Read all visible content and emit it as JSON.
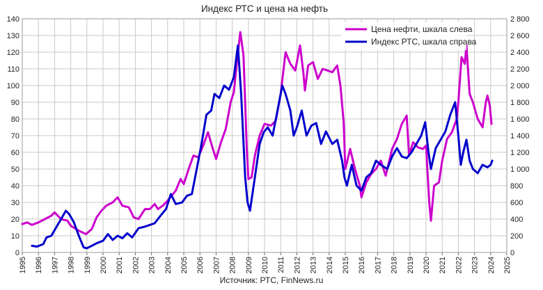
{
  "chart_data": {
    "type": "line",
    "title": "Индекс РТС и цена на нефть",
    "source": "Источник: РТС, FinNews.ru",
    "xlim": [
      1995,
      2025
    ],
    "x_ticks": [
      "1995",
      "1996",
      "1997",
      "1998",
      "1999",
      "2000",
      "2001",
      "2002",
      "2003",
      "2004",
      "2005",
      "2006",
      "2007",
      "2008",
      "2009",
      "2010",
      "2011",
      "2012",
      "2013",
      "2014",
      "2015",
      "2016",
      "2017",
      "2018",
      "2019",
      "2020",
      "2021",
      "2022",
      "2023",
      "2024",
      "2025"
    ],
    "y_left": {
      "lim": [
        0,
        140
      ],
      "ticks": [
        "0",
        "10",
        "20",
        "30",
        "40",
        "50",
        "60",
        "70",
        "80",
        "90",
        "100",
        "110",
        "120",
        "130",
        "140"
      ]
    },
    "y_right": {
      "lim": [
        0,
        2800
      ],
      "ticks": [
        "0",
        "200",
        "400",
        "600",
        "800",
        "1 000",
        "1 200",
        "1 400",
        "1 600",
        "1 800",
        "2 000",
        "2 200",
        "2 400",
        "2 600",
        "2 800"
      ]
    },
    "grid": true,
    "legend_position": "top-right",
    "series": [
      {
        "name": "Цена нефти, шкала слева",
        "axis": "left",
        "color": "#cc00cc",
        "points": [
          [
            1995.0,
            17
          ],
          [
            1995.3,
            18
          ],
          [
            1995.6,
            16.5
          ],
          [
            1996.0,
            18
          ],
          [
            1996.4,
            20
          ],
          [
            1996.8,
            22
          ],
          [
            1997.0,
            24
          ],
          [
            1997.4,
            20
          ],
          [
            1997.8,
            19
          ],
          [
            1998.0,
            16
          ],
          [
            1998.5,
            13
          ],
          [
            1998.95,
            11
          ],
          [
            1999.3,
            14
          ],
          [
            1999.6,
            21
          ],
          [
            1999.9,
            25
          ],
          [
            2000.2,
            28
          ],
          [
            2000.6,
            30
          ],
          [
            2000.9,
            33
          ],
          [
            2001.2,
            28
          ],
          [
            2001.6,
            27
          ],
          [
            2001.9,
            21
          ],
          [
            2002.2,
            20
          ],
          [
            2002.6,
            26
          ],
          [
            2002.9,
            26
          ],
          [
            2003.2,
            29
          ],
          [
            2003.4,
            26
          ],
          [
            2003.7,
            28
          ],
          [
            2004.0,
            31
          ],
          [
            2004.5,
            37
          ],
          [
            2004.8,
            44
          ],
          [
            2005.0,
            41
          ],
          [
            2005.3,
            50
          ],
          [
            2005.6,
            58
          ],
          [
            2005.9,
            57
          ],
          [
            2006.2,
            64
          ],
          [
            2006.5,
            72
          ],
          [
            2006.8,
            62
          ],
          [
            2007.0,
            56
          ],
          [
            2007.3,
            66
          ],
          [
            2007.6,
            74
          ],
          [
            2007.9,
            90
          ],
          [
            2008.1,
            96
          ],
          [
            2008.3,
            115
          ],
          [
            2008.5,
            132
          ],
          [
            2008.7,
            118
          ],
          [
            2008.9,
            62
          ],
          [
            2009.0,
            44
          ],
          [
            2009.2,
            45
          ],
          [
            2009.4,
            58
          ],
          [
            2009.7,
            70
          ],
          [
            2010.0,
            77
          ],
          [
            2010.4,
            76
          ],
          [
            2010.7,
            79
          ],
          [
            2011.0,
            95
          ],
          [
            2011.3,
            120
          ],
          [
            2011.6,
            113
          ],
          [
            2011.9,
            109
          ],
          [
            2012.2,
            124
          ],
          [
            2012.4,
            108
          ],
          [
            2012.5,
            97
          ],
          [
            2012.7,
            112
          ],
          [
            2013.0,
            114
          ],
          [
            2013.3,
            104
          ],
          [
            2013.6,
            110
          ],
          [
            2013.9,
            109
          ],
          [
            2014.2,
            108
          ],
          [
            2014.5,
            112
          ],
          [
            2014.7,
            100
          ],
          [
            2014.9,
            78
          ],
          [
            2015.0,
            50
          ],
          [
            2015.3,
            62
          ],
          [
            2015.6,
            50
          ],
          [
            2015.9,
            40
          ],
          [
            2016.0,
            33
          ],
          [
            2016.3,
            42
          ],
          [
            2016.6,
            47
          ],
          [
            2016.9,
            50
          ],
          [
            2017.2,
            55
          ],
          [
            2017.5,
            46
          ],
          [
            2017.9,
            62
          ],
          [
            2018.2,
            68
          ],
          [
            2018.5,
            77
          ],
          [
            2018.8,
            82
          ],
          [
            2018.95,
            58
          ],
          [
            2019.2,
            66
          ],
          [
            2019.5,
            63
          ],
          [
            2019.8,
            62
          ],
          [
            2020.0,
            64
          ],
          [
            2020.2,
            30
          ],
          [
            2020.3,
            19
          ],
          [
            2020.5,
            40
          ],
          [
            2020.8,
            42
          ],
          [
            2021.0,
            55
          ],
          [
            2021.3,
            68
          ],
          [
            2021.6,
            72
          ],
          [
            2021.9,
            80
          ],
          [
            2022.0,
            90
          ],
          [
            2022.2,
            117
          ],
          [
            2022.4,
            113
          ],
          [
            2022.5,
            124
          ],
          [
            2022.7,
            95
          ],
          [
            2022.9,
            90
          ],
          [
            2023.2,
            80
          ],
          [
            2023.5,
            75
          ],
          [
            2023.7,
            90
          ],
          [
            2023.8,
            94
          ],
          [
            2023.95,
            88
          ],
          [
            2024.05,
            77
          ]
        ]
      },
      {
        "name": "Индекс РТС, шкала справа",
        "axis": "right",
        "color": "#0000cc",
        "points": [
          [
            1995.6,
            80
          ],
          [
            1995.9,
            70
          ],
          [
            1996.3,
            100
          ],
          [
            1996.5,
            180
          ],
          [
            1996.8,
            200
          ],
          [
            1997.1,
            300
          ],
          [
            1997.4,
            400
          ],
          [
            1997.7,
            500
          ],
          [
            1997.9,
            460
          ],
          [
            1998.2,
            360
          ],
          [
            1998.5,
            200
          ],
          [
            1998.8,
            60
          ],
          [
            1999.0,
            50
          ],
          [
            1999.3,
            80
          ],
          [
            1999.6,
            110
          ],
          [
            2000.0,
            140
          ],
          [
            2000.3,
            220
          ],
          [
            2000.6,
            150
          ],
          [
            2000.9,
            200
          ],
          [
            2001.2,
            170
          ],
          [
            2001.5,
            230
          ],
          [
            2001.8,
            180
          ],
          [
            2002.2,
            290
          ],
          [
            2002.6,
            310
          ],
          [
            2002.9,
            330
          ],
          [
            2003.2,
            350
          ],
          [
            2003.6,
            450
          ],
          [
            2003.9,
            520
          ],
          [
            2004.2,
            700
          ],
          [
            2004.5,
            580
          ],
          [
            2004.9,
            600
          ],
          [
            2005.2,
            680
          ],
          [
            2005.5,
            700
          ],
          [
            2005.8,
            1000
          ],
          [
            2006.1,
            1300
          ],
          [
            2006.4,
            1650
          ],
          [
            2006.7,
            1700
          ],
          [
            2006.9,
            1900
          ],
          [
            2007.2,
            1850
          ],
          [
            2007.5,
            2000
          ],
          [
            2007.8,
            1950
          ],
          [
            2008.1,
            2100
          ],
          [
            2008.35,
            2480
          ],
          [
            2008.55,
            1900
          ],
          [
            2008.8,
            900
          ],
          [
            2008.95,
            600
          ],
          [
            2009.1,
            500
          ],
          [
            2009.4,
            900
          ],
          [
            2009.7,
            1300
          ],
          [
            2009.95,
            1440
          ],
          [
            2010.2,
            1500
          ],
          [
            2010.5,
            1400
          ],
          [
            2010.8,
            1700
          ],
          [
            2011.1,
            2000
          ],
          [
            2011.3,
            1900
          ],
          [
            2011.6,
            1700
          ],
          [
            2011.8,
            1400
          ],
          [
            2012.0,
            1500
          ],
          [
            2012.3,
            1700
          ],
          [
            2012.6,
            1400
          ],
          [
            2012.9,
            1520
          ],
          [
            2013.2,
            1550
          ],
          [
            2013.5,
            1300
          ],
          [
            2013.8,
            1450
          ],
          [
            2014.2,
            1300
          ],
          [
            2014.5,
            1350
          ],
          [
            2014.8,
            1100
          ],
          [
            2014.95,
            900
          ],
          [
            2015.1,
            800
          ],
          [
            2015.4,
            1050
          ],
          [
            2015.7,
            800
          ],
          [
            2016.0,
            740
          ],
          [
            2016.3,
            900
          ],
          [
            2016.6,
            950
          ],
          [
            2016.9,
            1100
          ],
          [
            2017.2,
            1050
          ],
          [
            2017.6,
            1000
          ],
          [
            2017.9,
            1150
          ],
          [
            2018.2,
            1250
          ],
          [
            2018.5,
            1150
          ],
          [
            2018.8,
            1130
          ],
          [
            2019.1,
            1200
          ],
          [
            2019.4,
            1300
          ],
          [
            2019.7,
            1400
          ],
          [
            2019.95,
            1560
          ],
          [
            2020.15,
            1200
          ],
          [
            2020.3,
            1000
          ],
          [
            2020.6,
            1250
          ],
          [
            2020.9,
            1350
          ],
          [
            2021.2,
            1450
          ],
          [
            2021.5,
            1650
          ],
          [
            2021.8,
            1800
          ],
          [
            2022.0,
            1400
          ],
          [
            2022.15,
            1050
          ],
          [
            2022.3,
            1200
          ],
          [
            2022.5,
            1350
          ],
          [
            2022.7,
            1100
          ],
          [
            2022.9,
            1000
          ],
          [
            2023.2,
            950
          ],
          [
            2023.5,
            1050
          ],
          [
            2023.8,
            1020
          ],
          [
            2024.0,
            1050
          ],
          [
            2024.1,
            1100
          ]
        ]
      }
    ]
  }
}
